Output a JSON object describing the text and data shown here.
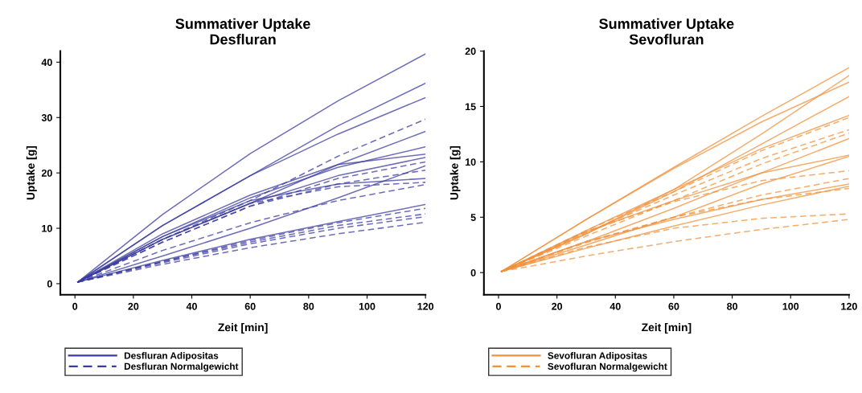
{
  "chart_data": [
    {
      "type": "line",
      "title": "Summativer Uptake\nDesfluran",
      "xlabel": "Zeit [min]",
      "ylabel": "Uptake [g]",
      "x": [
        1,
        30,
        60,
        90,
        120
      ],
      "xlim": [
        -5,
        120
      ],
      "xticks": [
        0,
        20,
        40,
        60,
        80,
        100,
        120
      ],
      "ylim": [
        -2,
        42
      ],
      "yticks": [
        0,
        10,
        20,
        30,
        40
      ],
      "grid": false,
      "legend": "bottom",
      "series": [
        {
          "name": "Desfluran Adipositas",
          "color": "#3c3ca0",
          "line_style": "solid",
          "values": [
            0.3,
            12.5,
            23.5,
            33,
            41.5
          ]
        },
        {
          "color": "#3c3ca0",
          "line_style": "solid",
          "values": [
            0.3,
            10.5,
            19.5,
            28.5,
            36.2
          ]
        },
        {
          "color": "#3c3ca0",
          "line_style": "solid",
          "values": [
            0.3,
            10.5,
            19.5,
            27,
            33.6
          ]
        },
        {
          "color": "#3c3ca0",
          "line_style": "solid",
          "values": [
            0.3,
            8,
            14.5,
            21.5,
            27.5
          ]
        },
        {
          "color": "#3c3ca0",
          "line_style": "solid",
          "values": [
            0.3,
            8.5,
            15.5,
            21,
            24.7
          ]
        },
        {
          "color": "#3c3ca0",
          "line_style": "solid",
          "values": [
            0.3,
            9,
            16,
            21.5,
            23.4
          ]
        },
        {
          "color": "#3c3ca0",
          "line_style": "solid",
          "values": [
            0.3,
            8,
            14.5,
            19.5,
            22.8
          ]
        },
        {
          "color": "#3c3ca0",
          "line_style": "solid",
          "values": [
            0.3,
            8.5,
            15,
            18,
            19
          ]
        },
        {
          "color": "#3c3ca0",
          "line_style": "solid",
          "values": [
            0.3,
            5,
            10,
            15.5,
            21.3
          ]
        },
        {
          "color": "#3c3ca0",
          "line_style": "solid",
          "values": [
            0.3,
            4.2,
            8,
            11.2,
            14.3
          ]
        },
        {
          "name": "Desfluran Normalgewicht",
          "color": "#3c3ca0",
          "line_style": "dashed",
          "values": [
            0.3,
            8,
            15,
            23,
            29.7
          ]
        },
        {
          "color": "#3c3ca0",
          "line_style": "dashed",
          "values": [
            0.3,
            7.5,
            14,
            19,
            22
          ]
        },
        {
          "color": "#3c3ca0",
          "line_style": "dashed",
          "values": [
            0.3,
            7.5,
            14,
            18,
            20.5
          ]
        },
        {
          "color": "#3c3ca0",
          "line_style": "dashed",
          "values": [
            0.3,
            8,
            14.5,
            17.5,
            18.3
          ]
        },
        {
          "color": "#3c3ca0",
          "line_style": "dashed",
          "values": [
            0.3,
            6,
            11,
            15,
            17.9
          ]
        },
        {
          "color": "#3c3ca0",
          "line_style": "dashed",
          "values": [
            0.3,
            4,
            7.8,
            11,
            13.6
          ]
        },
        {
          "color": "#3c3ca0",
          "line_style": "dashed",
          "values": [
            0.3,
            4,
            7.5,
            10.5,
            12.6
          ]
        },
        {
          "color": "#3c3ca0",
          "line_style": "dashed",
          "values": [
            0.3,
            3.8,
            7.2,
            10,
            12.1
          ]
        },
        {
          "color": "#3c3ca0",
          "line_style": "dashed",
          "values": [
            0.3,
            3.5,
            6.5,
            9,
            11.1
          ]
        }
      ]
    },
    {
      "type": "line",
      "title": "Summativer Uptake\nSevofluran",
      "xlabel": "Zeit [min]",
      "ylabel": "Uptake [g]",
      "x": [
        1,
        30,
        60,
        90,
        120
      ],
      "xlim": [
        -5,
        120
      ],
      "xticks": [
        0,
        20,
        40,
        60,
        80,
        100,
        120
      ],
      "ylim": [
        -2,
        20
      ],
      "yticks": [
        0,
        5,
        10,
        15,
        20
      ],
      "grid": false,
      "legend": "bottom",
      "series": [
        {
          "name": "Sevofluran Adipositas",
          "color": "#f0923c",
          "line_style": "solid",
          "values": [
            0.1,
            4.8,
            9.5,
            14.1,
            18.5
          ]
        },
        {
          "color": "#f0923c",
          "line_style": "solid",
          "values": [
            0.1,
            3.5,
            7.5,
            12.5,
            17.8
          ]
        },
        {
          "color": "#f0923c",
          "line_style": "solid",
          "values": [
            0.1,
            4.8,
            9.4,
            13.6,
            17.2
          ]
        },
        {
          "color": "#f0923c",
          "line_style": "solid",
          "values": [
            0.1,
            3.5,
            7.3,
            11.6,
            15.9
          ]
        },
        {
          "color": "#f0923c",
          "line_style": "solid",
          "values": [
            0.1,
            3.8,
            7.5,
            11.2,
            14.2
          ]
        },
        {
          "color": "#f0923c",
          "line_style": "solid",
          "values": [
            0.1,
            2.8,
            5.8,
            9,
            12.1
          ]
        },
        {
          "color": "#f0923c",
          "line_style": "solid",
          "values": [
            0.1,
            3.7,
            6.5,
            9,
            10.6
          ]
        },
        {
          "color": "#f0923c",
          "line_style": "solid",
          "values": [
            0.1,
            2.5,
            5,
            8,
            10.5
          ]
        },
        {
          "color": "#f0923c",
          "line_style": "solid",
          "values": [
            0.1,
            2.8,
            4.8,
            6.6,
            8
          ]
        },
        {
          "color": "#f0923c",
          "line_style": "solid",
          "values": [
            0.1,
            2.2,
            4.2,
            6.1,
            7.8
          ]
        },
        {
          "name": "Sevofluran Normalgewicht",
          "color": "#f0923c",
          "line_style": "dashed",
          "values": [
            0.1,
            3.8,
            7.3,
            11,
            14
          ]
        },
        {
          "color": "#f0923c",
          "line_style": "dashed",
          "values": [
            0.1,
            3.6,
            7,
            10.3,
            12.9
          ]
        },
        {
          "color": "#f0923c",
          "line_style": "dashed",
          "values": [
            0.1,
            3.3,
            6.5,
            9.8,
            12.6
          ]
        },
        {
          "color": "#f0923c",
          "line_style": "dashed",
          "values": [
            0.1,
            3.7,
            6.4,
            8.3,
            9.2
          ]
        },
        {
          "color": "#f0923c",
          "line_style": "dashed",
          "values": [
            0.1,
            2.7,
            5,
            7,
            8.5
          ]
        },
        {
          "color": "#f0923c",
          "line_style": "dashed",
          "values": [
            0.1,
            2.8,
            5,
            6.6,
            7.6
          ]
        },
        {
          "color": "#f0923c",
          "line_style": "dashed",
          "values": [
            0.1,
            2.3,
            4,
            4.9,
            5.3
          ]
        },
        {
          "color": "#f0923c",
          "line_style": "dashed",
          "values": [
            0.1,
            1.5,
            2.8,
            3.9,
            4.8
          ]
        }
      ]
    }
  ]
}
